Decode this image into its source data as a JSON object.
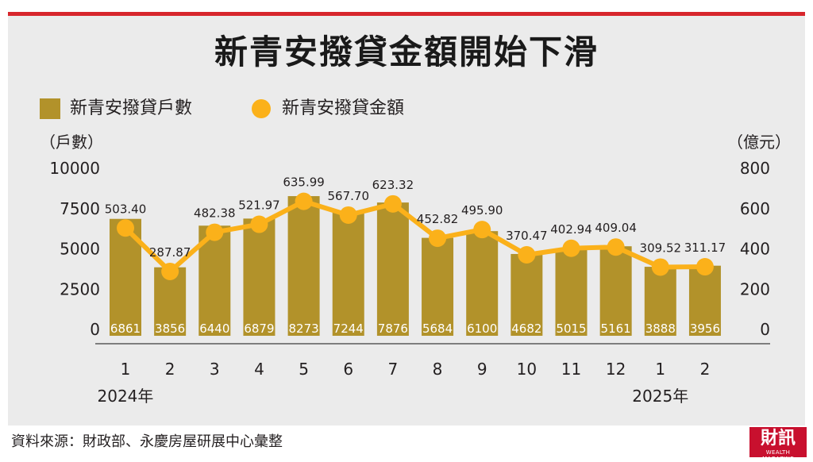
{
  "chart_data": {
    "type": "bar",
    "title": "新青安撥貸金額開始下滑",
    "categories": [
      "1",
      "2",
      "3",
      "4",
      "5",
      "6",
      "7",
      "8",
      "9",
      "10",
      "11",
      "12",
      "1",
      "2"
    ],
    "years": [
      {
        "label": "2024年",
        "category_index": 0
      },
      {
        "label": "2025年",
        "category_index": 12
      }
    ],
    "series": [
      {
        "name": "新青安撥貸戶數",
        "type": "bar",
        "axis": "left",
        "color": "#b2922a",
        "values": [
          6861,
          3856,
          6440,
          6879,
          8273,
          7244,
          7876,
          5684,
          6100,
          4682,
          5015,
          5161,
          3888,
          3956
        ]
      },
      {
        "name": "新青安撥貸金額",
        "type": "line",
        "axis": "right",
        "color": "#fbb11a",
        "values": [
          503.4,
          287.87,
          482.38,
          521.97,
          635.99,
          567.7,
          623.32,
          452.82,
          495.9,
          370.47,
          402.94,
          409.04,
          309.52,
          311.17
        ],
        "labels": [
          "503.40",
          "287.87",
          "482.38",
          "521.97",
          "635.99",
          "567.70",
          "623.32",
          "452.82",
          "495.90",
          "370.47",
          "402.94",
          "409.04",
          "309.52",
          "311.17"
        ]
      }
    ],
    "y_left": {
      "unit": "（戶數）",
      "min": 0,
      "max": 10000,
      "ticks": [
        "0",
        "2500",
        "5000",
        "7500",
        "10000"
      ]
    },
    "y_right": {
      "unit": "（億元）",
      "min": 0,
      "max": 800,
      "ticks": [
        "0",
        "200",
        "400",
        "600",
        "800"
      ]
    },
    "legend_position": "top-left",
    "grid": false
  },
  "source": "資料來源：財政部、永慶房屋研展中心彙整",
  "logo": {
    "main": "財訊",
    "sub": "WEALTH MAGAZINE"
  }
}
